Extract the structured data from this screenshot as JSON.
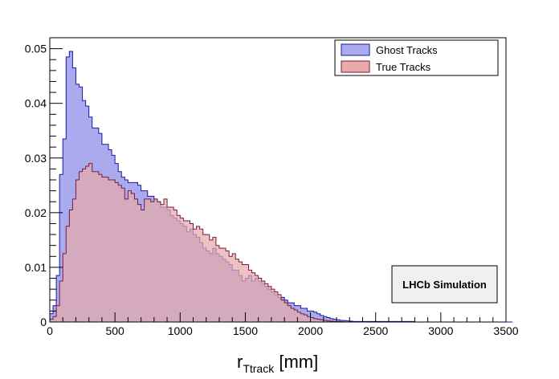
{
  "chart_data": {
    "type": "area",
    "xlabel_main": "r",
    "xlabel_sub": "Ttrack",
    "xlabel_unit": " [mm]",
    "ylabel": "",
    "xlim": [
      0,
      3500
    ],
    "ylim": [
      0,
      0.052
    ],
    "bin_width": 25,
    "x_ticks": [
      "0",
      "500",
      "1000",
      "1500",
      "2000",
      "2500",
      "3000",
      "3500"
    ],
    "y_ticks": [
      "0",
      "0.01",
      "0.02",
      "0.03",
      "0.04",
      "0.05"
    ],
    "legend_position": "top-right",
    "annotation": "LHCb Simulation",
    "series": [
      {
        "name": "Ghost Tracks",
        "fill": "#aaaaee",
        "line": "#1a1aa0",
        "values": [
          0.0015,
          0.003,
          0.0085,
          0.027,
          0.0335,
          0.0485,
          0.0495,
          0.0465,
          0.0435,
          0.043,
          0.0405,
          0.0395,
          0.0375,
          0.0355,
          0.0355,
          0.0345,
          0.0325,
          0.0325,
          0.0315,
          0.0305,
          0.029,
          0.0275,
          0.0265,
          0.026,
          0.0255,
          0.0255,
          0.0255,
          0.025,
          0.024,
          0.024,
          0.023,
          0.023,
          0.0225,
          0.022,
          0.021,
          0.021,
          0.0205,
          0.0195,
          0.019,
          0.0185,
          0.018,
          0.0175,
          0.0165,
          0.017,
          0.016,
          0.0155,
          0.0145,
          0.0135,
          0.013,
          0.0125,
          0.0135,
          0.0125,
          0.012,
          0.0115,
          0.011,
          0.0105,
          0.0095,
          0.0095,
          0.0085,
          0.0075,
          0.008,
          0.0085,
          0.0075,
          0.008,
          0.0075,
          0.007,
          0.0065,
          0.006,
          0.0055,
          0.005,
          0.0045,
          0.0045,
          0.004,
          0.0035,
          0.0035,
          0.003,
          0.003,
          0.0025,
          0.0025,
          0.002,
          0.002,
          0.0018,
          0.0015,
          0.0012,
          0.001,
          0.0008,
          0.0006,
          0.0005,
          0.0004,
          0.0003,
          0.00025,
          0.0002,
          0.00015,
          0.0001,
          0.0001,
          0.0001,
          0.0001,
          0.0001,
          0.0001,
          0.0001,
          0.0001,
          0.0001,
          0.0001,
          0.0001,
          0.0001,
          0.0001,
          0.0001,
          0.0001,
          0.0001,
          0.0001,
          0.0001,
          0.0001,
          0,
          0,
          0,
          0,
          0,
          0,
          0,
          0,
          0,
          0,
          0,
          0,
          0,
          0,
          0,
          0,
          0,
          0,
          0,
          0,
          0,
          0,
          0,
          0,
          0,
          0,
          0,
          0,
          0,
          0
        ]
      },
      {
        "name": "True Tracks",
        "fill": "#e8aaaa",
        "line": "#7a1a40",
        "values": [
          0.0005,
          0.001,
          0.003,
          0.0075,
          0.0125,
          0.0175,
          0.0205,
          0.0225,
          0.026,
          0.0275,
          0.028,
          0.0285,
          0.029,
          0.0275,
          0.0275,
          0.027,
          0.0265,
          0.0265,
          0.026,
          0.026,
          0.0255,
          0.025,
          0.0245,
          0.0225,
          0.024,
          0.0235,
          0.0225,
          0.0215,
          0.0205,
          0.0225,
          0.0225,
          0.022,
          0.0225,
          0.022,
          0.0215,
          0.0225,
          0.021,
          0.021,
          0.0205,
          0.0195,
          0.019,
          0.0185,
          0.0185,
          0.018,
          0.017,
          0.0175,
          0.017,
          0.016,
          0.016,
          0.015,
          0.0155,
          0.014,
          0.0135,
          0.0135,
          0.013,
          0.012,
          0.0125,
          0.0115,
          0.011,
          0.0105,
          0.0105,
          0.0095,
          0.009,
          0.0085,
          0.008,
          0.0075,
          0.007,
          0.0065,
          0.006,
          0.0055,
          0.005,
          0.004,
          0.0035,
          0.003,
          0.0025,
          0.0022,
          0.0018,
          0.0015,
          0.0013,
          0.001,
          0.0008,
          0.0006,
          0.0005,
          0.0004,
          0.0003,
          0.0002,
          0.00015,
          0.0001,
          0.0001,
          5e-05,
          0,
          0,
          0,
          0,
          0,
          0,
          0,
          0,
          0,
          0,
          0,
          0,
          0,
          0,
          0,
          0,
          0,
          0,
          0,
          0,
          0,
          0,
          0,
          0,
          0,
          0,
          0,
          0,
          0,
          0,
          0,
          0,
          0,
          0,
          0,
          0,
          0,
          0,
          0,
          0,
          0,
          0,
          0,
          0,
          0,
          0,
          0,
          0,
          0,
          0
        ]
      }
    ]
  }
}
